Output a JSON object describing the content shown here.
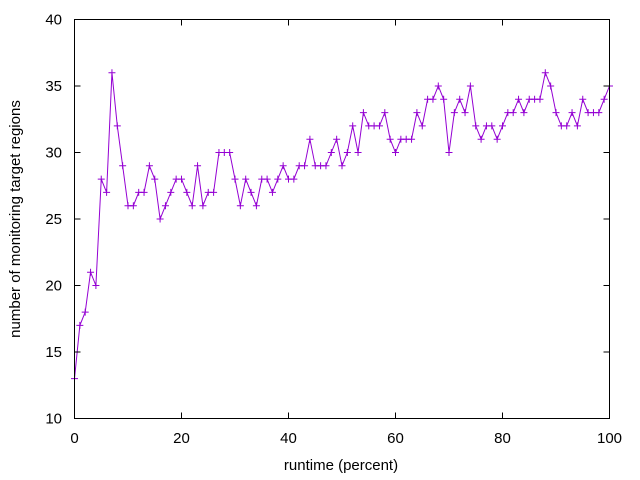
{
  "chart_data": {
    "type": "line",
    "title": "",
    "xlabel": "runtime (percent)",
    "ylabel": "number of monitoring target regions",
    "xlim": [
      0,
      100
    ],
    "ylim": [
      10,
      40
    ],
    "xticks": [
      0,
      20,
      40,
      60,
      80,
      100
    ],
    "yticks": [
      10,
      15,
      20,
      25,
      30,
      35,
      40
    ],
    "xtick_labels": [
      "0",
      "20",
      "40",
      "60",
      "80",
      "100"
    ],
    "ytick_labels": [
      "10",
      "15",
      "20",
      "25",
      "30",
      "35",
      "40"
    ],
    "grid": false,
    "legend": "none",
    "marker": "plus",
    "color": "#9400d3",
    "series": [
      {
        "x": [
          0,
          1,
          2,
          3,
          4,
          5,
          6,
          7,
          8,
          9,
          10,
          11,
          12,
          13,
          14,
          15,
          16,
          17,
          18,
          19,
          20,
          21,
          22,
          23,
          24,
          25,
          26,
          27,
          28,
          29,
          30,
          31,
          32,
          33,
          34,
          35,
          36,
          37,
          38,
          39,
          40,
          41,
          42,
          43,
          44,
          45,
          46,
          47,
          48,
          49,
          50,
          51,
          52,
          53,
          54,
          55,
          56,
          57,
          58,
          59,
          60,
          61,
          62,
          63,
          64,
          65,
          66,
          67,
          68,
          69,
          70,
          71,
          72,
          73,
          74,
          75,
          76,
          77,
          78,
          79,
          80,
          81,
          82,
          83,
          84,
          85,
          86,
          87,
          88,
          89,
          90,
          91,
          92,
          93,
          94,
          95,
          96,
          97,
          98,
          99,
          100
        ],
        "y": [
          13,
          17,
          18,
          21,
          20,
          28,
          27,
          36,
          32,
          29,
          26,
          26,
          27,
          27,
          29,
          28,
          25,
          26,
          27,
          28,
          28,
          27,
          26,
          29,
          26,
          27,
          27,
          30,
          30,
          30,
          28,
          26,
          28,
          27,
          26,
          28,
          28,
          27,
          28,
          29,
          28,
          28,
          29,
          29,
          31,
          29,
          29,
          29,
          30,
          31,
          29,
          30,
          32,
          30,
          33,
          32,
          32,
          32,
          33,
          31,
          30,
          31,
          31,
          31,
          33,
          32,
          34,
          34,
          35,
          34,
          30,
          33,
          34,
          33,
          35,
          32,
          31,
          32,
          32,
          31,
          32,
          33,
          33,
          34,
          33,
          34,
          34,
          34,
          36,
          35,
          33,
          32,
          32,
          33,
          32,
          34,
          33,
          33,
          33,
          34,
          35
        ]
      }
    ]
  }
}
